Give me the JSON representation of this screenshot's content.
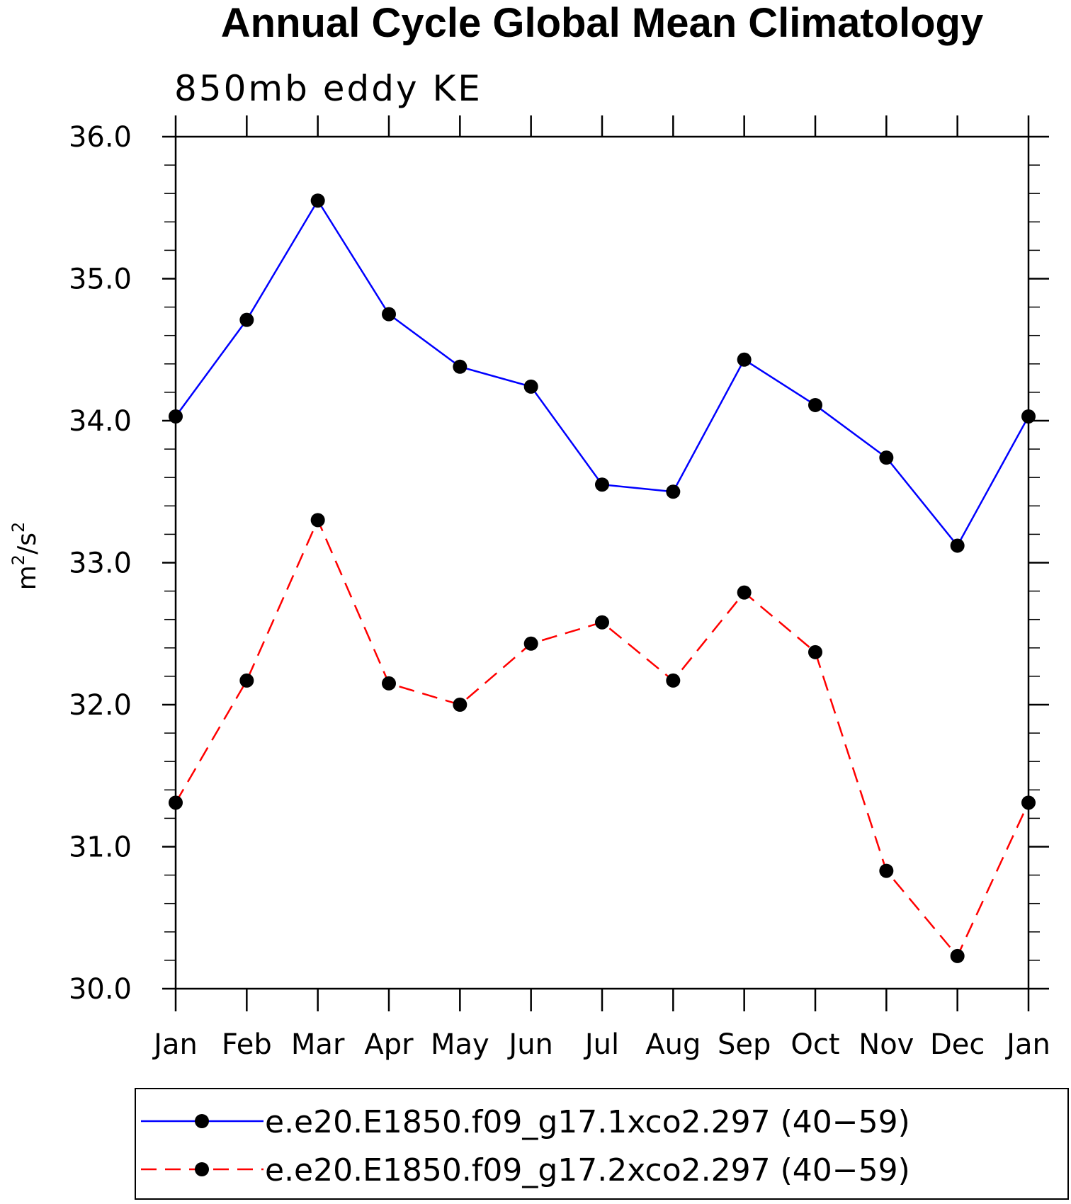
{
  "chart_data": {
    "type": "line",
    "title": "Annual Cycle Global Mean Climatology",
    "subtitle": "850mb eddy KE",
    "ylabel": "m²/s²",
    "ylabel_parts": {
      "base1": "m",
      "sup1": "2",
      "slash": "/s",
      "sup2": "2"
    },
    "xlabel": "",
    "categories": [
      "Jan",
      "Feb",
      "Mar",
      "Apr",
      "May",
      "Jun",
      "Jul",
      "Aug",
      "Sep",
      "Oct",
      "Nov",
      "Dec",
      "Jan"
    ],
    "ylim": [
      30.0,
      36.0
    ],
    "yticks": [
      "30.0",
      "31.0",
      "32.0",
      "33.0",
      "34.0",
      "35.0",
      "36.0"
    ],
    "ytick_values": [
      30.0,
      31.0,
      32.0,
      33.0,
      34.0,
      35.0,
      36.0
    ],
    "legend_position": "bottom",
    "grid": false,
    "series": [
      {
        "name": "e.e20.E1850.f09_g17.1xco2.297 (40−59)",
        "color": "#0000ff",
        "line_style": "solid",
        "marker": "filled-circle",
        "values": [
          34.03,
          34.71,
          35.55,
          34.75,
          34.38,
          34.24,
          33.55,
          33.5,
          34.43,
          34.11,
          33.74,
          33.12,
          34.03
        ]
      },
      {
        "name": "e.e20.E1850.f09_g17.2xco2.297 (40−59)",
        "color": "#ff0000",
        "line_style": "dashed",
        "marker": "filled-circle",
        "values": [
          31.31,
          32.17,
          33.3,
          32.15,
          32.0,
          32.43,
          32.58,
          32.17,
          32.79,
          32.37,
          30.83,
          30.23,
          31.31
        ]
      }
    ]
  }
}
